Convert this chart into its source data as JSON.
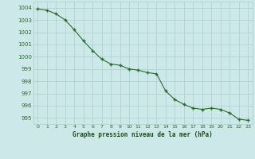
{
  "hours": [
    0,
    1,
    2,
    3,
    4,
    5,
    6,
    7,
    8,
    9,
    10,
    11,
    12,
    13,
    14,
    15,
    16,
    17,
    18,
    19,
    20,
    21,
    22,
    23
  ],
  "pressure": [
    1003.9,
    1003.8,
    1003.5,
    1003.0,
    1002.2,
    1001.3,
    1000.5,
    999.8,
    999.4,
    999.3,
    999.0,
    998.9,
    998.7,
    998.6,
    997.2,
    996.5,
    996.1,
    995.8,
    995.7,
    995.8,
    995.7,
    995.4,
    994.9,
    994.8
  ],
  "line_color": "#2d6a2d",
  "marker_color": "#2d6a2d",
  "background_color": "#cce8e8",
  "grid_color": "#aacfcf",
  "title": "Graphe pression niveau de la mer (hPa)",
  "title_color": "#1a4d1a",
  "ylim_min": 994.5,
  "ylim_max": 1004.5,
  "ytick_min": 995,
  "ytick_max": 1004,
  "ytick_step": 1,
  "xlim_min": -0.5,
  "xlim_max": 23.5
}
